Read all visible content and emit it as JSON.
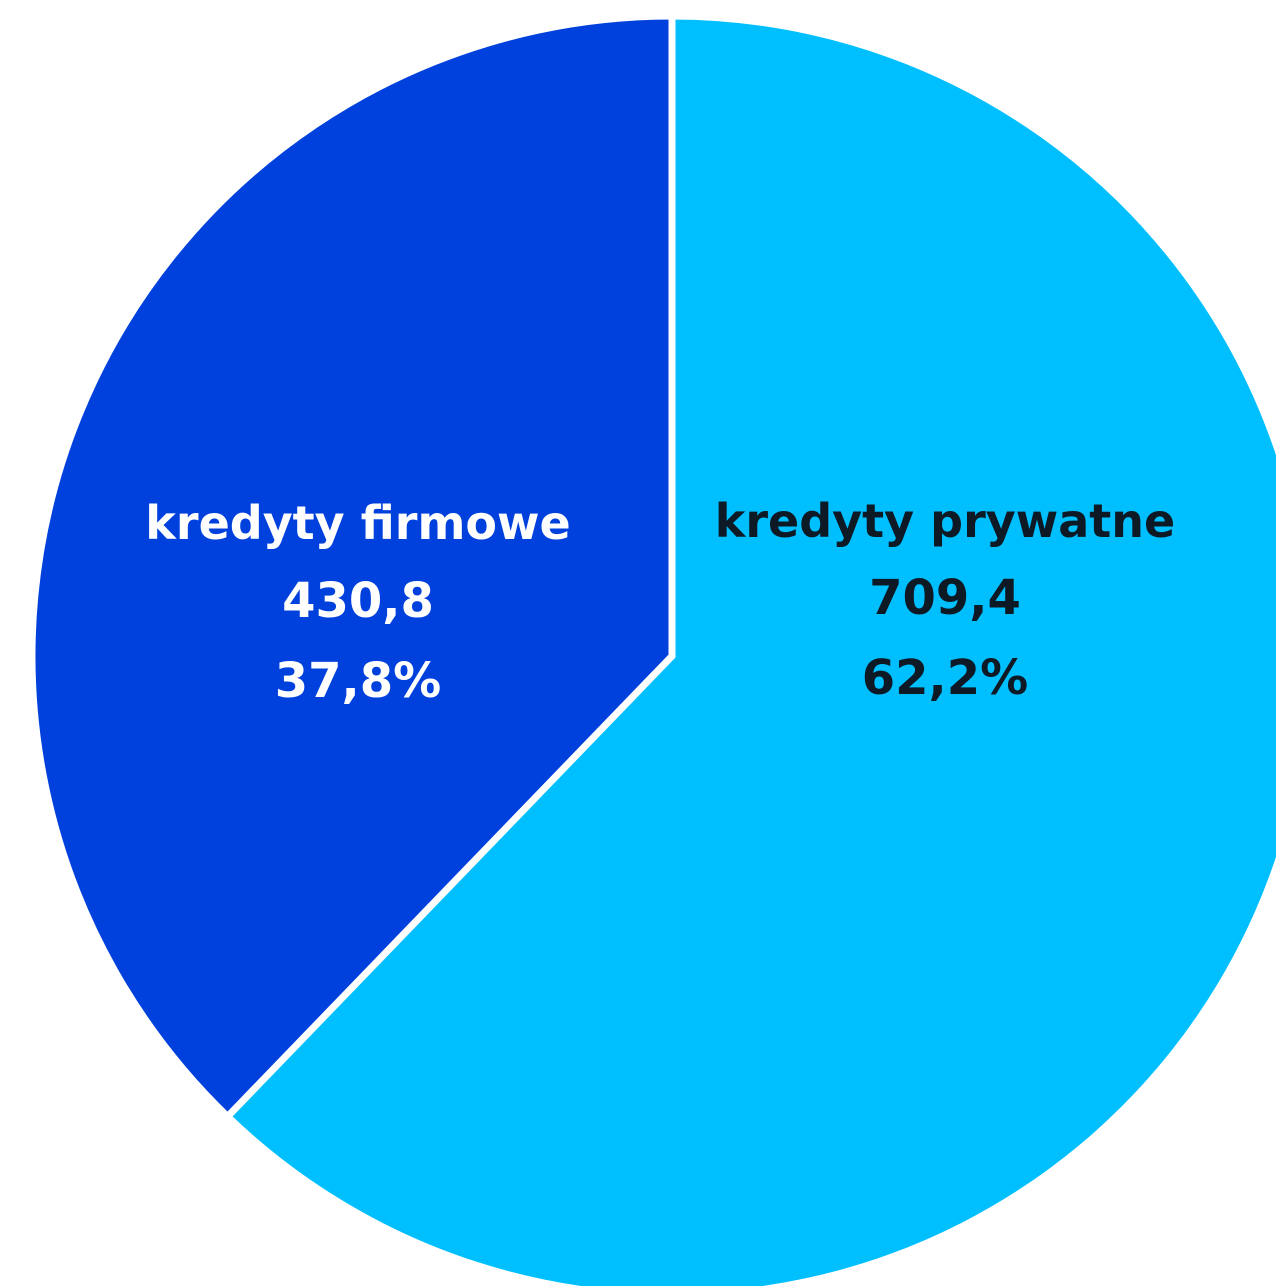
{
  "chart_data": {
    "type": "pie",
    "title": "",
    "start_angle_deg": 0,
    "direction": "clockwise",
    "slices": [
      {
        "label": "kredyty prywatne",
        "value": 709.4,
        "value_text": "709,4",
        "percent": 62.2,
        "percent_text": "62,2%",
        "color": "#00BFFF",
        "text_color": "#0d1a26"
      },
      {
        "label": "kredyty firmowe",
        "value": 430.8,
        "value_text": "430,8",
        "percent": 37.8,
        "percent_text": "37,8%",
        "color": "#0040DD",
        "text_color": "#ffffff"
      }
    ],
    "legend": "none",
    "slice_separator_color": "#ffffff"
  }
}
